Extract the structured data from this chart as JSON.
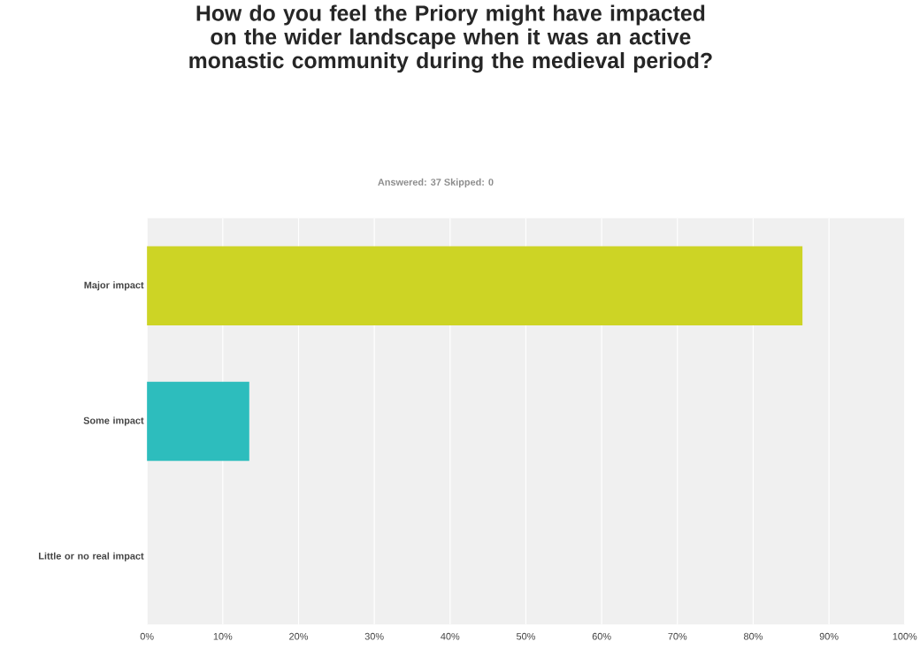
{
  "chart_data": {
    "type": "bar",
    "orientation": "horizontal",
    "title": "How do you feel the Priory might have impacted on the wider landscape when it was an active monastic community during the medieval period?",
    "subtitle": "Answered: 37    Skipped: 0",
    "categories": [
      "Major impact",
      "Some impact",
      "Little or no real impact"
    ],
    "values": [
      86.5,
      13.5,
      0
    ],
    "colors": [
      "#cdd425",
      "#2dbdbd",
      "#2dbdbd"
    ],
    "xlim": [
      0,
      100
    ],
    "xticks": [
      {
        "value": 0,
        "label": "0%"
      },
      {
        "value": 10,
        "label": "10%"
      },
      {
        "value": 20,
        "label": "20%"
      },
      {
        "value": 30,
        "label": "30%"
      },
      {
        "value": 40,
        "label": "40%"
      },
      {
        "value": 50,
        "label": "50%"
      },
      {
        "value": 60,
        "label": "60%"
      },
      {
        "value": 70,
        "label": "70%"
      },
      {
        "value": 80,
        "label": "80%"
      },
      {
        "value": 90,
        "label": "90%"
      },
      {
        "value": 100,
        "label": "100%"
      }
    ],
    "grid": "x"
  }
}
